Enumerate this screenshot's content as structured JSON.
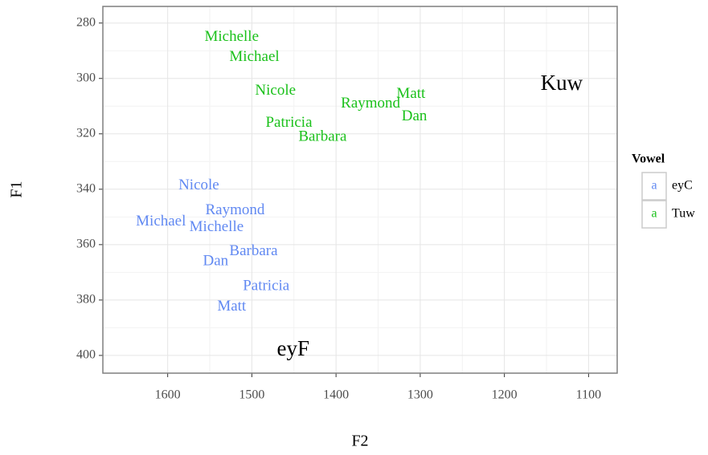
{
  "chart_data": {
    "type": "scatter",
    "x_label": "F2",
    "y_label": "F1",
    "xlim": [
      1677,
      1066
    ],
    "ylim": [
      274,
      406.4
    ],
    "xticks": [
      1600,
      1500,
      1400,
      1300,
      1200,
      1100
    ],
    "yticks": [
      280,
      300,
      320,
      340,
      360,
      380,
      400
    ],
    "grid": true,
    "legend_title": "Vowel",
    "legend_key": "a",
    "legend_position": "right",
    "series": [
      {
        "name": "eyC",
        "color": "#6189f2",
        "labels": [
          "Nicole",
          "Raymond",
          "Michael",
          "Michelle",
          "Barbara",
          "Dan",
          "Patricia",
          "Matt"
        ],
        "x": [
          1563,
          1520,
          1608,
          1542,
          1498,
          1543,
          1483,
          1524
        ],
        "values": [
          338.8,
          347.8,
          351.9,
          353.9,
          362.6,
          366.1,
          375.1,
          382.6
        ]
      },
      {
        "name": "Tuw",
        "color": "#1bc11b",
        "labels": [
          "Michelle",
          "Michael",
          "Nicole",
          "Raymond",
          "Matt",
          "Dan",
          "Patricia",
          "Barbara"
        ],
        "x": [
          1524,
          1497,
          1472,
          1359,
          1311,
          1307,
          1456,
          1416
        ],
        "values": [
          285.2,
          292.5,
          304.6,
          309.3,
          305.8,
          313.9,
          316.2,
          321.2
        ]
      }
    ],
    "annotations": [
      {
        "text": "Kuw",
        "x": 1132,
        "y": 302.3
      },
      {
        "text": "eyF",
        "x": 1451,
        "y": 398.3
      }
    ]
  }
}
